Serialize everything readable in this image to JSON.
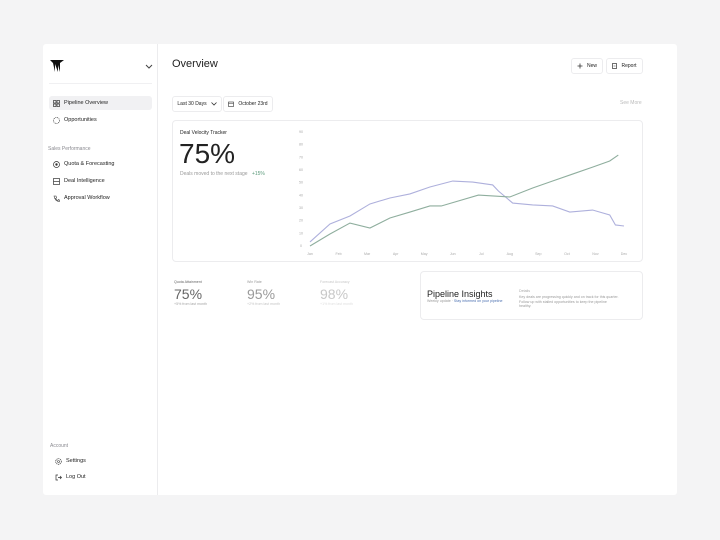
{
  "sidebar": {
    "nav": [
      "Pipeline Overview",
      "Opportunities"
    ],
    "section": "Sales Performance",
    "section_items": [
      "Quota & Forecasting",
      "Deal Intelligence",
      "Approval Workflow"
    ],
    "account_section": "Account",
    "account_items": [
      "Settings",
      "Log Out"
    ]
  },
  "header": {
    "title": "Overview",
    "buttons": [
      "New",
      "Report"
    ]
  },
  "filters": {
    "range": "Last 30 Days",
    "date": "October 23rd",
    "see_more": "See More"
  },
  "tracker": {
    "title": "Deal Velocity Tracker",
    "value": "75%",
    "subtitle": "Deals moved to the next stage",
    "change": "+15%"
  },
  "chart_data": {
    "type": "line",
    "xlim": [
      0,
      11
    ],
    "xticks": [
      {
        "value": 0,
        "label": "Jan"
      },
      {
        "value": 1,
        "label": "Feb"
      },
      {
        "value": 2,
        "label": "Mar"
      },
      {
        "value": 3,
        "label": "Apr"
      },
      {
        "value": 4,
        "label": "May"
      },
      {
        "value": 5,
        "label": "Jun"
      },
      {
        "value": 6,
        "label": "Jul"
      },
      {
        "value": 7,
        "label": "Aug"
      },
      {
        "value": 8,
        "label": "Sep"
      },
      {
        "value": 9,
        "label": "Oct"
      },
      {
        "value": 10,
        "label": "Nov"
      },
      {
        "value": 11,
        "label": "Dec"
      }
    ],
    "ylim": [
      0,
      90
    ],
    "yticks": [
      0,
      10,
      20,
      30,
      40,
      50,
      60,
      70,
      80,
      90
    ],
    "grid": false,
    "series": [
      {
        "color": "#aeb0dc",
        "x": [
          0,
          0.7,
          1.4,
          2.1,
          2.8,
          3.5,
          4.2,
          5,
          5.7,
          6.4,
          6.6,
          7.1,
          7.8,
          8.5,
          9.1,
          9.9,
          10.5,
          10.7,
          11
        ],
        "values": [
          3.2,
          17.4,
          23.7,
          33.2,
          37.9,
          41.1,
          46.6,
          51.3,
          50.5,
          48.2,
          43.4,
          33.9,
          32.4,
          31.6,
          26.8,
          28.4,
          24.5,
          16.6,
          15.8
        ]
      },
      {
        "color": "#8fae9e",
        "x": [
          0,
          0.7,
          1.4,
          2.1,
          2.8,
          3.5,
          4.2,
          4.6,
          5.9,
          6.4,
          7,
          7.8,
          8.5,
          9.2,
          9.9,
          10.5,
          10.8
        ],
        "values": [
          0,
          9.5,
          18.1,
          14.2,
          22.1,
          26.8,
          31.6,
          31.6,
          40.2,
          39.5,
          38.7,
          45.8,
          51.3,
          56.8,
          62.3,
          67.1,
          71.8
        ]
      }
    ]
  },
  "stats": [
    {
      "label": "Quota Attainment",
      "value": "75%",
      "note": "+5% from last month"
    },
    {
      "label": "Win Rate",
      "value": "95%",
      "note": "+2% from last month"
    },
    {
      "label": "Forecast Accuracy",
      "value": "98%",
      "note": "+1% from last month"
    }
  ],
  "insights": {
    "title": "Pipeline Insights",
    "meta": "Weekly update",
    "link": "Stay informed on your pipeline",
    "details_title": "Details",
    "details": "Key deals are progressing quickly and on track for this quarter. Follow up with stalled opportunities to keep the pipeline healthy."
  }
}
